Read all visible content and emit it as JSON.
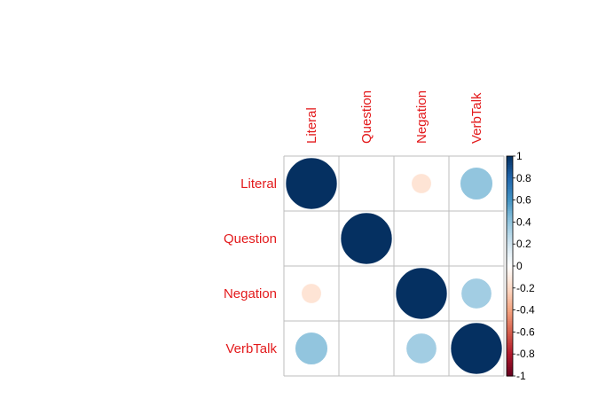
{
  "chart_data": {
    "type": "heatmap",
    "variables": [
      "Literal",
      "Question",
      "Negation",
      "VerbTalk"
    ],
    "matrix": [
      [
        1.0,
        0.0,
        -0.15,
        0.4
      ],
      [
        0.0,
        1.0,
        0.0,
        0.0
      ],
      [
        -0.15,
        0.0,
        1.0,
        0.35
      ],
      [
        0.4,
        0.0,
        0.35,
        1.0
      ]
    ],
    "colorbar": {
      "range": [
        -1,
        1
      ],
      "ticks": [
        1,
        0.8,
        0.6,
        0.4,
        0.2,
        0,
        -0.2,
        -0.4,
        -0.6,
        -0.8,
        -1
      ],
      "tick_labels": [
        "1",
        "0.8",
        "0.6",
        "0.4",
        "0.2",
        "0",
        "-0.2",
        "-0.4",
        "-0.6",
        "-0.8",
        "-1"
      ]
    },
    "colors": {
      "label_color": "#e31a1c",
      "grid_color": "#bebebe",
      "scale": [
        "#67001f",
        "#b2182b",
        "#d6604d",
        "#f4a582",
        "#fddbc7",
        "#ffffff",
        "#d1e5f0",
        "#92c5de",
        "#4393c3",
        "#2166ac",
        "#053061"
      ]
    }
  }
}
